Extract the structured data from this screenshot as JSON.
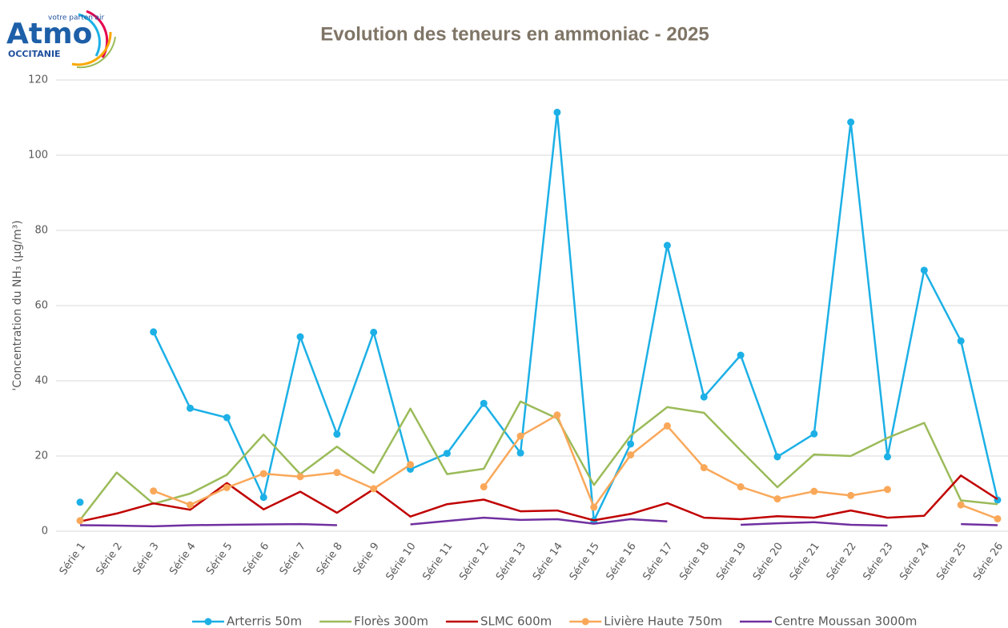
{
  "logo": {
    "tagline": "votre parten'air",
    "name": "Atmo",
    "region": "OCCITANIE"
  },
  "chart_data": {
    "type": "line",
    "title": "Evolution des teneurs en ammoniac - 2025",
    "y_label": "'Concentration du NH₃ (µg/m³)",
    "categories": [
      "Série 1",
      "Série 2",
      "Série 3",
      "Série 4",
      "Série 5",
      "Série 6",
      "Série 7",
      "Série 8",
      "Série 9",
      "Série 10",
      "Série 11",
      "Série 12",
      "Série 13",
      "Série 14",
      "Série 15",
      "Série 16",
      "Série 17",
      "Série 18",
      "Série 19",
      "Série 20",
      "Série 21",
      "Série 22",
      "Série 23",
      "Série 24",
      "Série 25",
      "Série 26"
    ],
    "ylim": [
      0,
      120
    ],
    "yticks": [
      0,
      20,
      40,
      60,
      80,
      100,
      120
    ],
    "grid": true,
    "legend": "bottom",
    "series": [
      {
        "name": "Arterris 50m",
        "color": "#1cb0e6",
        "marker": true,
        "values": [
          7.7,
          null,
          53,
          32.7,
          30.2,
          9,
          51.7,
          25.8,
          52.9,
          16.5,
          20.7,
          34,
          20.8,
          111.4,
          2.8,
          23.2,
          76,
          35.7,
          46.8,
          19.8,
          25.9,
          108.8,
          19.8,
          69.4,
          50.6,
          8.3
        ]
      },
      {
        "name": "Florès 300m",
        "color": "#9bbb59",
        "marker": false,
        "values": [
          3,
          15.6,
          7.3,
          10,
          15,
          25.7,
          15.2,
          22.5,
          15.5,
          32.6,
          15.2,
          16.6,
          34.5,
          30,
          12.3,
          25.4,
          33,
          31.5,
          21.5,
          11.7,
          20.4,
          20,
          24.8,
          28.8,
          8.2,
          7.2
        ]
      },
      {
        "name": "SLMC 600m",
        "color": "#c00000",
        "marker": false,
        "values": [
          2.6,
          4.7,
          7.4,
          5.7,
          12.8,
          5.8,
          10.5,
          4.9,
          11.2,
          3.9,
          7.2,
          8.4,
          5.3,
          5.5,
          2.9,
          4.6,
          7.5,
          3.6,
          3.2,
          4,
          3.6,
          5.5,
          3.6,
          4.1,
          14.8,
          8.5
        ]
      },
      {
        "name": "Livière Haute 750m",
        "color": "#f9a85a",
        "marker": true,
        "values": [
          2.8,
          null,
          10.7,
          7,
          11.6,
          15.3,
          14.5,
          15.6,
          11.3,
          17.7,
          null,
          11.8,
          25.3,
          30.9,
          6.4,
          20.3,
          28,
          16.9,
          11.8,
          8.6,
          10.6,
          9.5,
          11.1,
          null,
          7,
          3.3
        ]
      },
      {
        "name": "Centre Moussan 3000m",
        "color": "#7030a0",
        "marker": false,
        "values": [
          1.6,
          1.5,
          1.3,
          1.6,
          1.7,
          1.8,
          1.9,
          1.6,
          null,
          1.8,
          2.7,
          3.6,
          3,
          3.2,
          2,
          3.2,
          2.6,
          null,
          1.7,
          2.1,
          2.4,
          1.7,
          1.5,
          null,
          1.9,
          1.6
        ]
      }
    ]
  }
}
